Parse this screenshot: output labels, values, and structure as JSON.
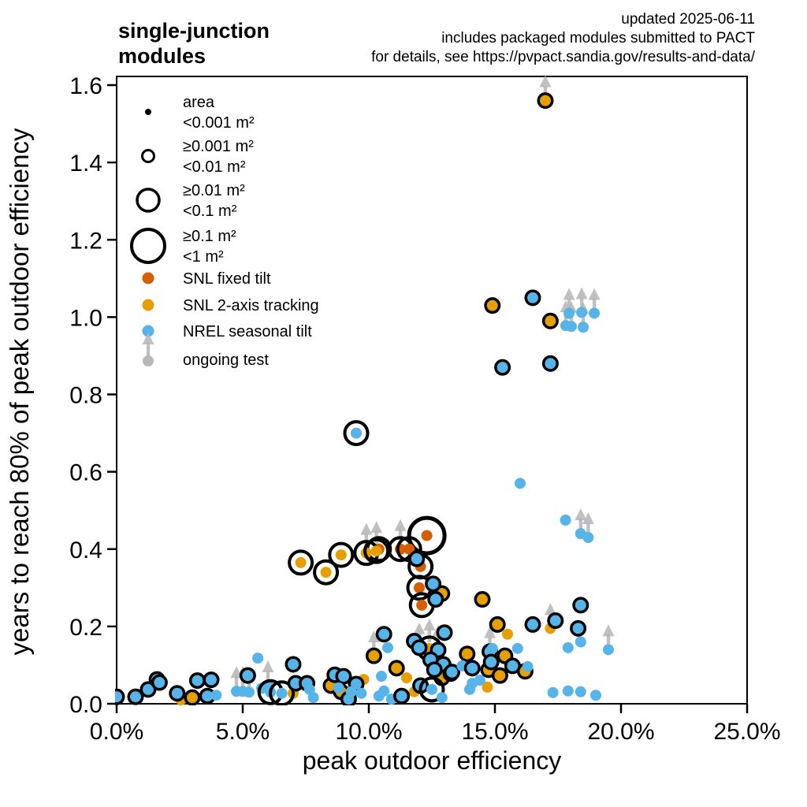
{
  "header": {
    "title_line1": "single-junction",
    "title_line2": "modules",
    "note_line1": "updated 2025-06-11",
    "note_line2": "includes packaged modules submitted to PACT",
    "note_line3": "for details, see https://pvpact.sandia.gov/results-and-data/"
  },
  "axes": {
    "x_label": "peak outdoor efficiency",
    "y_label": "years to reach 80% of peak outdoor efficiency",
    "x_tick_labels": [
      "0.0%",
      "5.0%",
      "10.0%",
      "15.0%",
      "20.0%",
      "25.0%"
    ],
    "x_tick_values": [
      0,
      5,
      10,
      15,
      20,
      25
    ],
    "y_tick_labels": [
      "0.0",
      "0.2",
      "0.4",
      "0.6",
      "0.8",
      "1.0",
      "1.2",
      "1.4",
      "1.6"
    ],
    "y_tick_values": [
      0,
      0.2,
      0.4,
      0.6,
      0.8,
      1.0,
      1.2,
      1.4,
      1.6
    ]
  },
  "legend": {
    "size_items": [
      {
        "size_class": 0,
        "line1": "area",
        "line2": "<0.001 m²"
      },
      {
        "size_class": 1,
        "line1": "≥0.001 m²",
        "line2": "<0.01 m²"
      },
      {
        "size_class": 2,
        "line1": "≥0.01 m²",
        "line2": "<0.1 m²"
      },
      {
        "size_class": 3,
        "line1": "≥0.1 m²",
        "line2": "<1 m²"
      }
    ],
    "series_items": [
      {
        "key": "fixed",
        "label": "SNL fixed tilt",
        "color": "#D55E00"
      },
      {
        "key": "tracking",
        "label": "SNL 2-axis tracking",
        "color": "#E69F00"
      },
      {
        "key": "nrel",
        "label": "NREL seasonal tilt",
        "color": "#56B4E9"
      },
      {
        "key": "ongoing",
        "label": "ongoing test",
        "color": "#B5B5B5"
      }
    ]
  },
  "colors": {
    "snl_fixed": "#D55E00",
    "snl_2axis": "#E69F00",
    "nrel": "#56B4E9",
    "ongoing_arrow": "#B5B5B5",
    "axis": "#000000",
    "background": "#FFFFFF"
  },
  "chart_data": {
    "type": "scatter",
    "xlabel": "peak outdoor efficiency",
    "ylabel": "years to reach 80% of peak outdoor efficiency",
    "xlim_percent": [
      0,
      25
    ],
    "ylim_years": [
      0,
      1.6
    ],
    "grid": false,
    "legend_position": "upper-left-inside",
    "point_format": [
      "x_percent",
      "years",
      "size_class_0to3",
      "ongoing_test_flag"
    ],
    "series": [
      {
        "name": "SNL fixed tilt",
        "color": "#D55E00",
        "points": [
          [
            12.3,
            0.435,
            3,
            0
          ],
          [
            10.4,
            0.4,
            2,
            0
          ],
          [
            11.25,
            0.4,
            2,
            1
          ],
          [
            11.6,
            0.4,
            2,
            0
          ],
          [
            12.05,
            0.355,
            2,
            0
          ],
          [
            12.0,
            0.3,
            2,
            0
          ],
          [
            12.1,
            0.255,
            2,
            0
          ]
        ]
      },
      {
        "name": "SNL 2-axis tracking",
        "color": "#E69F00",
        "points": [
          [
            17.0,
            1.56,
            1,
            1
          ],
          [
            14.9,
            1.03,
            1,
            0
          ],
          [
            17.2,
            0.99,
            1,
            0
          ],
          [
            7.3,
            0.365,
            2,
            0
          ],
          [
            8.3,
            0.34,
            2,
            0
          ],
          [
            8.9,
            0.385,
            2,
            0
          ],
          [
            9.9,
            0.39,
            2,
            1
          ],
          [
            10.3,
            0.395,
            2,
            1
          ],
          [
            12.9,
            0.285,
            1,
            0
          ],
          [
            14.5,
            0.27,
            1,
            0
          ],
          [
            15.1,
            0.205,
            1,
            0
          ],
          [
            17.2,
            0.195,
            0,
            1
          ],
          [
            15.5,
            0.18,
            0,
            0
          ],
          [
            2.55,
            0.01,
            0,
            0
          ],
          [
            3.0,
            0.016,
            1,
            0
          ],
          [
            7.0,
            0.027,
            0,
            0
          ],
          [
            8.5,
            0.047,
            1,
            0
          ],
          [
            8.9,
            0.031,
            1,
            0
          ],
          [
            9.8,
            0.063,
            0,
            0
          ],
          [
            10.2,
            0.124,
            1,
            1
          ],
          [
            11.1,
            0.092,
            1,
            0
          ],
          [
            11.5,
            0.067,
            0,
            0
          ],
          [
            11.8,
            0.031,
            0,
            0
          ],
          [
            12.4,
            0.143,
            2,
            1
          ],
          [
            12.9,
            0.067,
            1,
            0
          ],
          [
            13.9,
            0.129,
            1,
            0
          ],
          [
            14.7,
            0.043,
            0,
            0
          ],
          [
            14.75,
            0.088,
            1,
            0
          ],
          [
            15.2,
            0.073,
            1,
            0
          ],
          [
            15.4,
            0.124,
            1,
            0
          ],
          [
            16.2,
            0.084,
            1,
            0
          ]
        ]
      },
      {
        "name": "NREL seasonal tilt",
        "color": "#56B4E9",
        "points": [
          [
            16.5,
            1.05,
            1,
            0
          ],
          [
            15.3,
            0.87,
            1,
            0
          ],
          [
            17.2,
            0.88,
            1,
            0
          ],
          [
            9.5,
            0.7,
            2,
            0
          ],
          [
            16.0,
            0.57,
            0,
            0
          ],
          [
            17.8,
            0.475,
            0,
            0
          ],
          [
            18.4,
            0.44,
            0,
            1
          ],
          [
            18.7,
            0.43,
            0,
            1
          ],
          [
            17.94,
            1.01,
            0,
            1
          ],
          [
            18.44,
            1.012,
            0,
            1
          ],
          [
            18.94,
            1.01,
            0,
            1
          ],
          [
            17.81,
            0.978,
            0,
            1
          ],
          [
            18.03,
            0.976,
            0,
            1
          ],
          [
            18.5,
            0.974,
            0,
            1
          ],
          [
            11.9,
            0.375,
            1,
            0
          ],
          [
            12.55,
            0.31,
            1,
            0
          ],
          [
            12.65,
            0.27,
            1,
            0
          ],
          [
            16.5,
            0.205,
            1,
            0
          ],
          [
            17.4,
            0.215,
            1,
            0
          ],
          [
            18.4,
            0.255,
            1,
            0
          ],
          [
            18.3,
            0.195,
            1,
            0
          ],
          [
            17.9,
            0.145,
            0,
            0
          ],
          [
            18.4,
            0.16,
            0,
            0
          ],
          [
            19.5,
            0.14,
            0,
            1
          ],
          [
            0.0,
            0.018,
            1,
            0
          ],
          [
            0.75,
            0.018,
            1,
            0
          ],
          [
            1.25,
            0.037,
            1,
            0
          ],
          [
            1.6,
            0.063,
            1,
            0
          ],
          [
            1.7,
            0.055,
            1,
            0
          ],
          [
            2.4,
            0.027,
            1,
            0
          ],
          [
            3.2,
            0.06,
            1,
            0
          ],
          [
            3.6,
            0.02,
            1,
            0
          ],
          [
            3.75,
            0.062,
            1,
            0
          ],
          [
            3.95,
            0.022,
            0,
            0
          ],
          [
            4.75,
            0.032,
            0,
            1
          ],
          [
            5.0,
            0.032,
            0,
            1
          ],
          [
            5.25,
            0.03,
            0,
            1
          ],
          [
            5.2,
            0.073,
            1,
            0
          ],
          [
            5.6,
            0.118,
            0,
            0
          ],
          [
            5.75,
            0.04,
            0,
            0
          ],
          [
            6.0,
            0.047,
            0,
            1
          ],
          [
            6.1,
            0.03,
            2,
            0
          ],
          [
            6.55,
            0.027,
            2,
            0
          ],
          [
            7.0,
            0.102,
            1,
            0
          ],
          [
            7.1,
            0.053,
            1,
            0
          ],
          [
            7.55,
            0.053,
            1,
            0
          ],
          [
            7.65,
            0.037,
            0,
            0
          ],
          [
            7.8,
            0.016,
            0,
            0
          ],
          [
            8.65,
            0.075,
            1,
            0
          ],
          [
            9.0,
            0.071,
            1,
            0
          ],
          [
            8.8,
            0.041,
            0,
            0
          ],
          [
            9.2,
            0.012,
            1,
            0
          ],
          [
            9.5,
            0.051,
            1,
            0
          ],
          [
            9.3,
            0.031,
            0,
            0
          ],
          [
            9.7,
            0.027,
            0,
            0
          ],
          [
            10.4,
            0.02,
            0,
            0
          ],
          [
            10.9,
            0.012,
            0,
            0
          ],
          [
            10.6,
            0.18,
            1,
            0
          ],
          [
            10.75,
            0.145,
            0,
            0
          ],
          [
            10.5,
            0.071,
            0,
            0
          ],
          [
            10.6,
            0.033,
            0,
            0
          ],
          [
            11.3,
            0.02,
            1,
            0
          ],
          [
            11.8,
            0.162,
            1,
            0
          ],
          [
            12.0,
            0.145,
            1,
            1
          ],
          [
            12.75,
            0.139,
            1,
            1
          ],
          [
            13.0,
            0.184,
            1,
            0
          ],
          [
            12.45,
            0.114,
            1,
            0
          ],
          [
            12.95,
            0.102,
            1,
            0
          ],
          [
            12.05,
            0.047,
            1,
            0
          ],
          [
            12.5,
            0.037,
            2,
            0
          ],
          [
            12.9,
            0.016,
            0,
            0
          ],
          [
            12.6,
            0.088,
            1,
            0
          ],
          [
            13.25,
            0.078,
            1,
            0
          ],
          [
            13.3,
            0.082,
            1,
            0
          ],
          [
            13.7,
            0.098,
            0,
            0
          ],
          [
            14.1,
            0.092,
            1,
            0
          ],
          [
            14.1,
            0.053,
            0,
            0
          ],
          [
            14.0,
            0.037,
            0,
            0
          ],
          [
            14.4,
            0.061,
            0,
            0
          ],
          [
            14.8,
            0.135,
            1,
            1
          ],
          [
            14.9,
            0.143,
            0,
            0
          ],
          [
            14.85,
            0.108,
            1,
            0
          ],
          [
            15.7,
            0.098,
            1,
            0
          ],
          [
            15.9,
            0.143,
            0,
            0
          ],
          [
            16.3,
            0.096,
            0,
            0
          ],
          [
            17.3,
            0.029,
            0,
            0
          ],
          [
            17.9,
            0.033,
            0,
            0
          ],
          [
            18.4,
            0.031,
            0,
            0
          ],
          [
            19.0,
            0.022,
            0,
            0
          ]
        ]
      }
    ]
  }
}
